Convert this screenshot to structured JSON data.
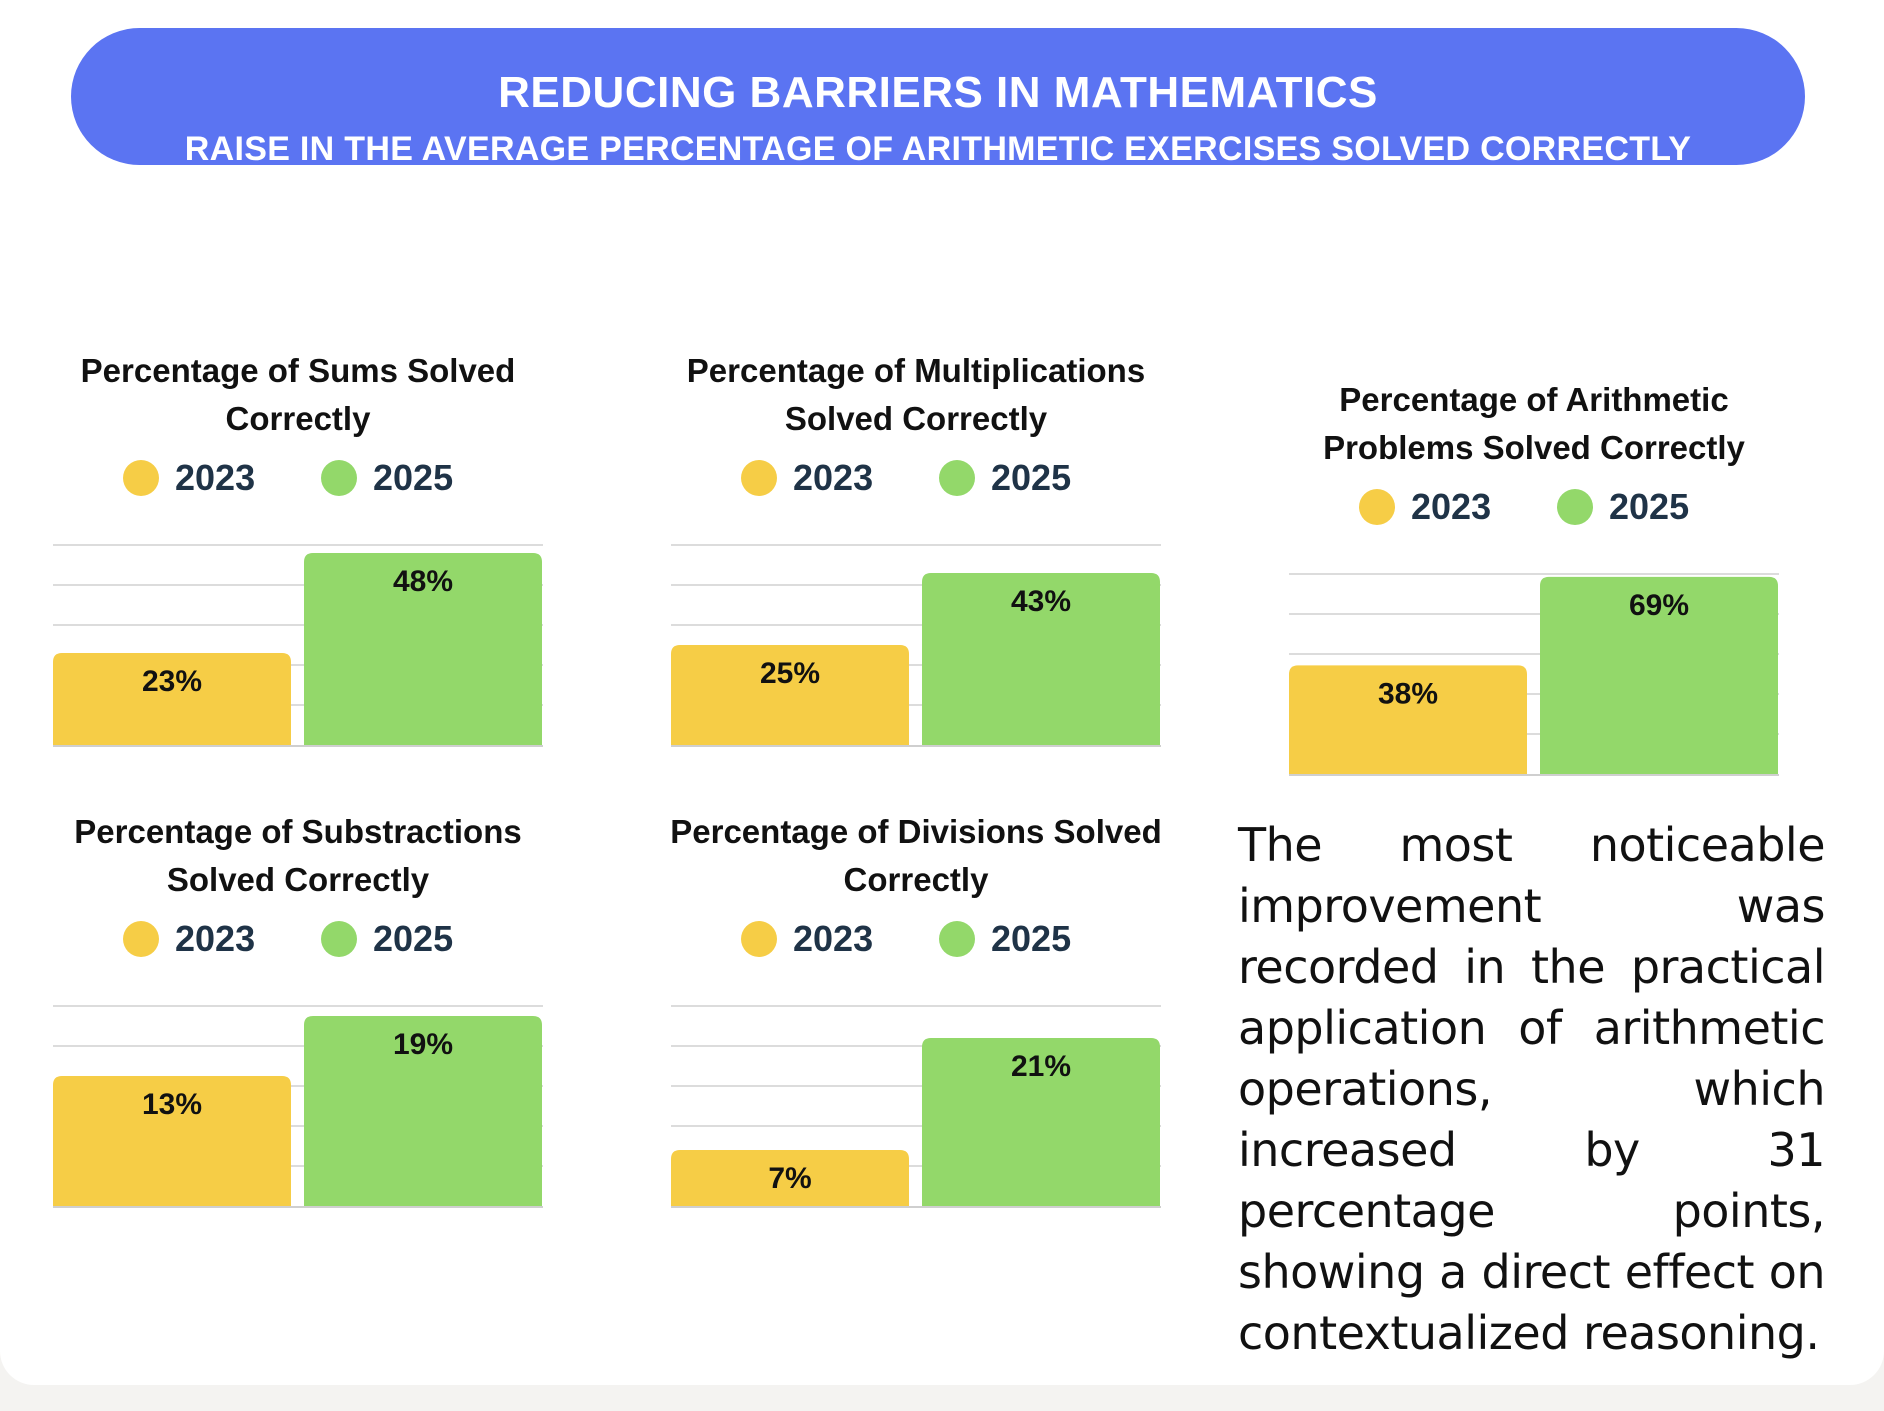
{
  "header": {
    "title": "REDUCING BARRIERS IN MATHEMATICS",
    "subtitle": "RAISE IN THE AVERAGE PERCENTAGE OF ARITHMETIC EXERCISES SOLVED CORRECTLY"
  },
  "colors": {
    "banner": "#5b74f2",
    "year_2023": "#f6cd46",
    "year_2025": "#93d86a"
  },
  "legend": {
    "year_a": "2023",
    "year_b": "2025"
  },
  "chart_data": [
    {
      "type": "bar",
      "title": "Percentage of Sums Solved Correctly",
      "categories": [
        "2023",
        "2025"
      ],
      "values": [
        23,
        48
      ],
      "labels": [
        "23%",
        "48%"
      ],
      "ylim": [
        0,
        50
      ]
    },
    {
      "type": "bar",
      "title": "Percentage of Multiplications Solved Correctly",
      "categories": [
        "2023",
        "2025"
      ],
      "values": [
        25,
        43
      ],
      "labels": [
        "25%",
        "43%"
      ],
      "ylim": [
        0,
        50
      ]
    },
    {
      "type": "bar",
      "title": "Percentage of Arithmetic Problems Solved Correctly",
      "categories": [
        "2023",
        "2025"
      ],
      "values": [
        38,
        69
      ],
      "labels": [
        "38%",
        "69%"
      ],
      "ylim": [
        0,
        70
      ]
    },
    {
      "type": "bar",
      "title": "Percentage of Substractions Solved Correctly",
      "categories": [
        "2023",
        "2025"
      ],
      "values": [
        13,
        19
      ],
      "labels": [
        "13%",
        "19%"
      ],
      "ylim": [
        0,
        20
      ]
    },
    {
      "type": "bar",
      "title": "Percentage of Divisions Solved Correctly",
      "categories": [
        "2023",
        "2025"
      ],
      "values": [
        7,
        21
      ],
      "labels": [
        "7%",
        "21%"
      ],
      "ylim": [
        0,
        25
      ]
    }
  ],
  "narrative": "The most noticeable improvement was recorded in the practical application of arithmetic operations, which increased by 31 percentage points, showing a direct effect on contextualized reasoning."
}
